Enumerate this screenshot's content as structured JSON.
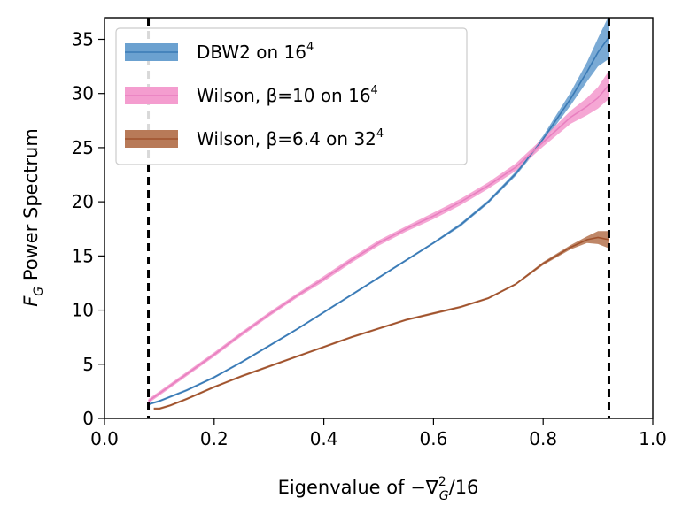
{
  "chart_data": {
    "type": "line",
    "xlabel_main": "Eigenvalue of −∇",
    "xlabel_sup": "2",
    "xlabel_sub": "G",
    "xlabel_tail": "/16",
    "ylabel_main": "F",
    "ylabel_sub": "G",
    "ylabel_tail": " Power Spectrum",
    "xlim": [
      0.0,
      1.0
    ],
    "ylim": [
      0,
      37
    ],
    "xticks": [
      "0.0",
      "0.2",
      "0.4",
      "0.6",
      "0.8",
      "1.0"
    ],
    "yticks": [
      "0",
      "5",
      "10",
      "15",
      "20",
      "25",
      "30",
      "35"
    ],
    "grid": false,
    "legend_position": "top-left",
    "vlines": [
      0.08,
      0.92
    ],
    "series": [
      {
        "name": "DBW2 on 16",
        "name_sup": "4",
        "color": "#3a7ab5",
        "band_color": "#6ba1d0",
        "x": [
          0.08,
          0.1,
          0.15,
          0.2,
          0.25,
          0.3,
          0.35,
          0.4,
          0.45,
          0.5,
          0.55,
          0.6,
          0.65,
          0.7,
          0.75,
          0.8,
          0.85,
          0.88,
          0.9,
          0.92
        ],
        "y": [
          1.3,
          1.6,
          2.6,
          3.8,
          5.2,
          6.7,
          8.2,
          9.8,
          11.4,
          13.0,
          14.6,
          16.2,
          17.9,
          20.0,
          22.6,
          25.8,
          29.5,
          32.0,
          33.8,
          35.2
        ],
        "err": [
          0.1,
          0.1,
          0.1,
          0.1,
          0.1,
          0.1,
          0.1,
          0.1,
          0.1,
          0.1,
          0.1,
          0.1,
          0.15,
          0.15,
          0.2,
          0.3,
          0.6,
          0.9,
          1.3,
          2.0
        ]
      },
      {
        "name": "Wilson, β=10 on 16",
        "name_sup": "4",
        "color": "#e87fc0",
        "band_color": "#f49dcf",
        "x": [
          0.08,
          0.1,
          0.15,
          0.2,
          0.25,
          0.3,
          0.35,
          0.4,
          0.45,
          0.5,
          0.55,
          0.6,
          0.65,
          0.7,
          0.75,
          0.8,
          0.85,
          0.88,
          0.9,
          0.92
        ],
        "y": [
          1.6,
          2.3,
          4.1,
          5.9,
          7.8,
          9.6,
          11.3,
          12.9,
          14.6,
          16.2,
          17.5,
          18.7,
          20.0,
          21.5,
          23.2,
          25.5,
          27.8,
          28.8,
          29.6,
          30.8
        ],
        "err": [
          0.2,
          0.2,
          0.2,
          0.2,
          0.2,
          0.2,
          0.2,
          0.25,
          0.25,
          0.25,
          0.25,
          0.3,
          0.3,
          0.3,
          0.35,
          0.4,
          0.6,
          0.8,
          1.0,
          1.3
        ]
      },
      {
        "name": "Wilson, β=6.4 on 32",
        "name_sup": "4",
        "color": "#a0522d",
        "band_color": "#b87a58",
        "x": [
          0.09,
          0.1,
          0.12,
          0.15,
          0.2,
          0.25,
          0.3,
          0.35,
          0.4,
          0.45,
          0.5,
          0.55,
          0.6,
          0.65,
          0.7,
          0.75,
          0.8,
          0.85,
          0.88,
          0.9,
          0.92
        ],
        "y": [
          0.9,
          0.9,
          1.2,
          1.8,
          2.9,
          3.9,
          4.8,
          5.7,
          6.6,
          7.5,
          8.3,
          9.1,
          9.7,
          10.3,
          11.1,
          12.4,
          14.3,
          15.8,
          16.5,
          16.7,
          16.5
        ],
        "err": [
          0.1,
          0.1,
          0.1,
          0.1,
          0.1,
          0.1,
          0.1,
          0.1,
          0.1,
          0.1,
          0.1,
          0.1,
          0.1,
          0.1,
          0.1,
          0.1,
          0.15,
          0.2,
          0.3,
          0.6,
          0.8
        ]
      }
    ]
  }
}
